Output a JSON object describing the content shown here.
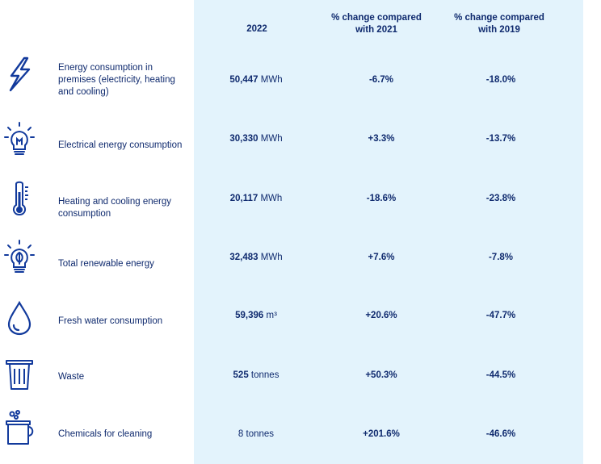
{
  "headers": {
    "col1": "2022",
    "col2": "% change compared with 2021",
    "col3": "% change compared with 2019"
  },
  "rows": [
    {
      "icon": "lightning-bolt-icon",
      "label": "Energy consumption in premises (electricity, heating and cooling)",
      "value": "50,447",
      "unit": "MWh",
      "change_2021": "-6.7%",
      "change_2019": "-18.0%"
    },
    {
      "icon": "light-bulb-icon",
      "label": "Electrical energy consumption",
      "value": "30,330",
      "unit": "MWh",
      "change_2021": "+3.3%",
      "change_2019": "-13.7%"
    },
    {
      "icon": "thermometer-icon",
      "label": "Heating and cooling energy consumption",
      "value": "20,117",
      "unit": "MWh",
      "change_2021": "-18.6%",
      "change_2019": "-23.8%"
    },
    {
      "icon": "leaf-bulb-icon",
      "label": "Total renewable energy",
      "value": "32,483",
      "unit": "MWh",
      "change_2021": "+7.6%",
      "change_2019": "-7.8%"
    },
    {
      "icon": "water-drop-icon",
      "label": "Fresh water consumption",
      "value": "59,396",
      "unit": "m³",
      "change_2021": "+20.6%",
      "change_2019": "-47.7%"
    },
    {
      "icon": "waste-bin-icon",
      "label": "Waste",
      "value": "525",
      "unit": "tonnes",
      "change_2021": "+50.3%",
      "change_2019": "-44.5%"
    },
    {
      "icon": "cleaning-bucket-icon",
      "label": "Chemicals for cleaning",
      "value": "8",
      "unit": "tonnes",
      "change_2021": "+201.6%",
      "change_2019": "-46.6%"
    }
  ],
  "colors": {
    "text": "#0f2a6e",
    "icon": "#123a9c",
    "panel": "#e3f3fc"
  }
}
